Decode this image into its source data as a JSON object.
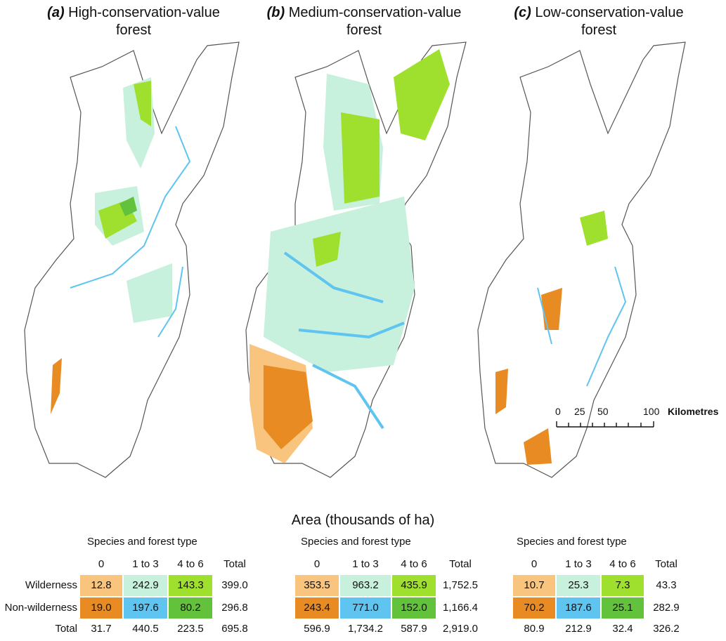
{
  "panels": [
    {
      "letter": "(a)",
      "title_line1": "High-conservation-value",
      "title_line2": "forest"
    },
    {
      "letter": "(b)",
      "title_line1": "Medium-conservation-value",
      "title_line2": "forest"
    },
    {
      "letter": "(c)",
      "title_line1": "Low-conservation-value",
      "title_line2": "forest"
    }
  ],
  "scale": {
    "ticks": [
      "0",
      "25",
      "50",
      "100"
    ],
    "unit": "Kilometres"
  },
  "legend_title": "Area (thousands of ha)",
  "colors": {
    "wild_0": "#f9c47e",
    "wild_13": "#c7f0dd",
    "wild_46": "#9fe02e",
    "nonwild_0": "#e88b22",
    "nonwild_13": "#5fc4ef",
    "nonwild_46": "#63c23b"
  },
  "tables": [
    {
      "header": "Species and forest type",
      "cols": [
        "0",
        "1 to 3",
        "4 to 6",
        "Total"
      ],
      "rows": [
        {
          "label": "Wilderness",
          "values": [
            "12.8",
            "242.9",
            "143.3",
            "399.0"
          ]
        },
        {
          "label": "Non-wilderness",
          "values": [
            "19.0",
            "197.6",
            "80.2",
            "296.8"
          ]
        },
        {
          "label": "Total",
          "values": [
            "31.7",
            "440.5",
            "223.5",
            "695.8"
          ]
        }
      ]
    },
    {
      "header": "Species and forest type",
      "cols": [
        "0",
        "1 to 3",
        "4 to 6",
        "Total"
      ],
      "rows": [
        {
          "label": "",
          "values": [
            "353.5",
            "963.2",
            "435.9",
            "1,752.5"
          ]
        },
        {
          "label": "",
          "values": [
            "243.4",
            "771.0",
            "152.0",
            "1,166.4"
          ]
        },
        {
          "label": "",
          "values": [
            "596.9",
            "1,734.2",
            "587.9",
            "2,919.0"
          ]
        }
      ]
    },
    {
      "header": "Species and forest type",
      "cols": [
        "0",
        "1 to 3",
        "4 to 6",
        "Total"
      ],
      "rows": [
        {
          "label": "",
          "values": [
            "10.7",
            "25.3",
            "7.3",
            "43.3"
          ]
        },
        {
          "label": "",
          "values": [
            "70.2",
            "187.6",
            "25.1",
            "282.9"
          ]
        },
        {
          "label": "",
          "values": [
            "80.9",
            "212.9",
            "32.4",
            "326.2"
          ]
        }
      ]
    }
  ]
}
